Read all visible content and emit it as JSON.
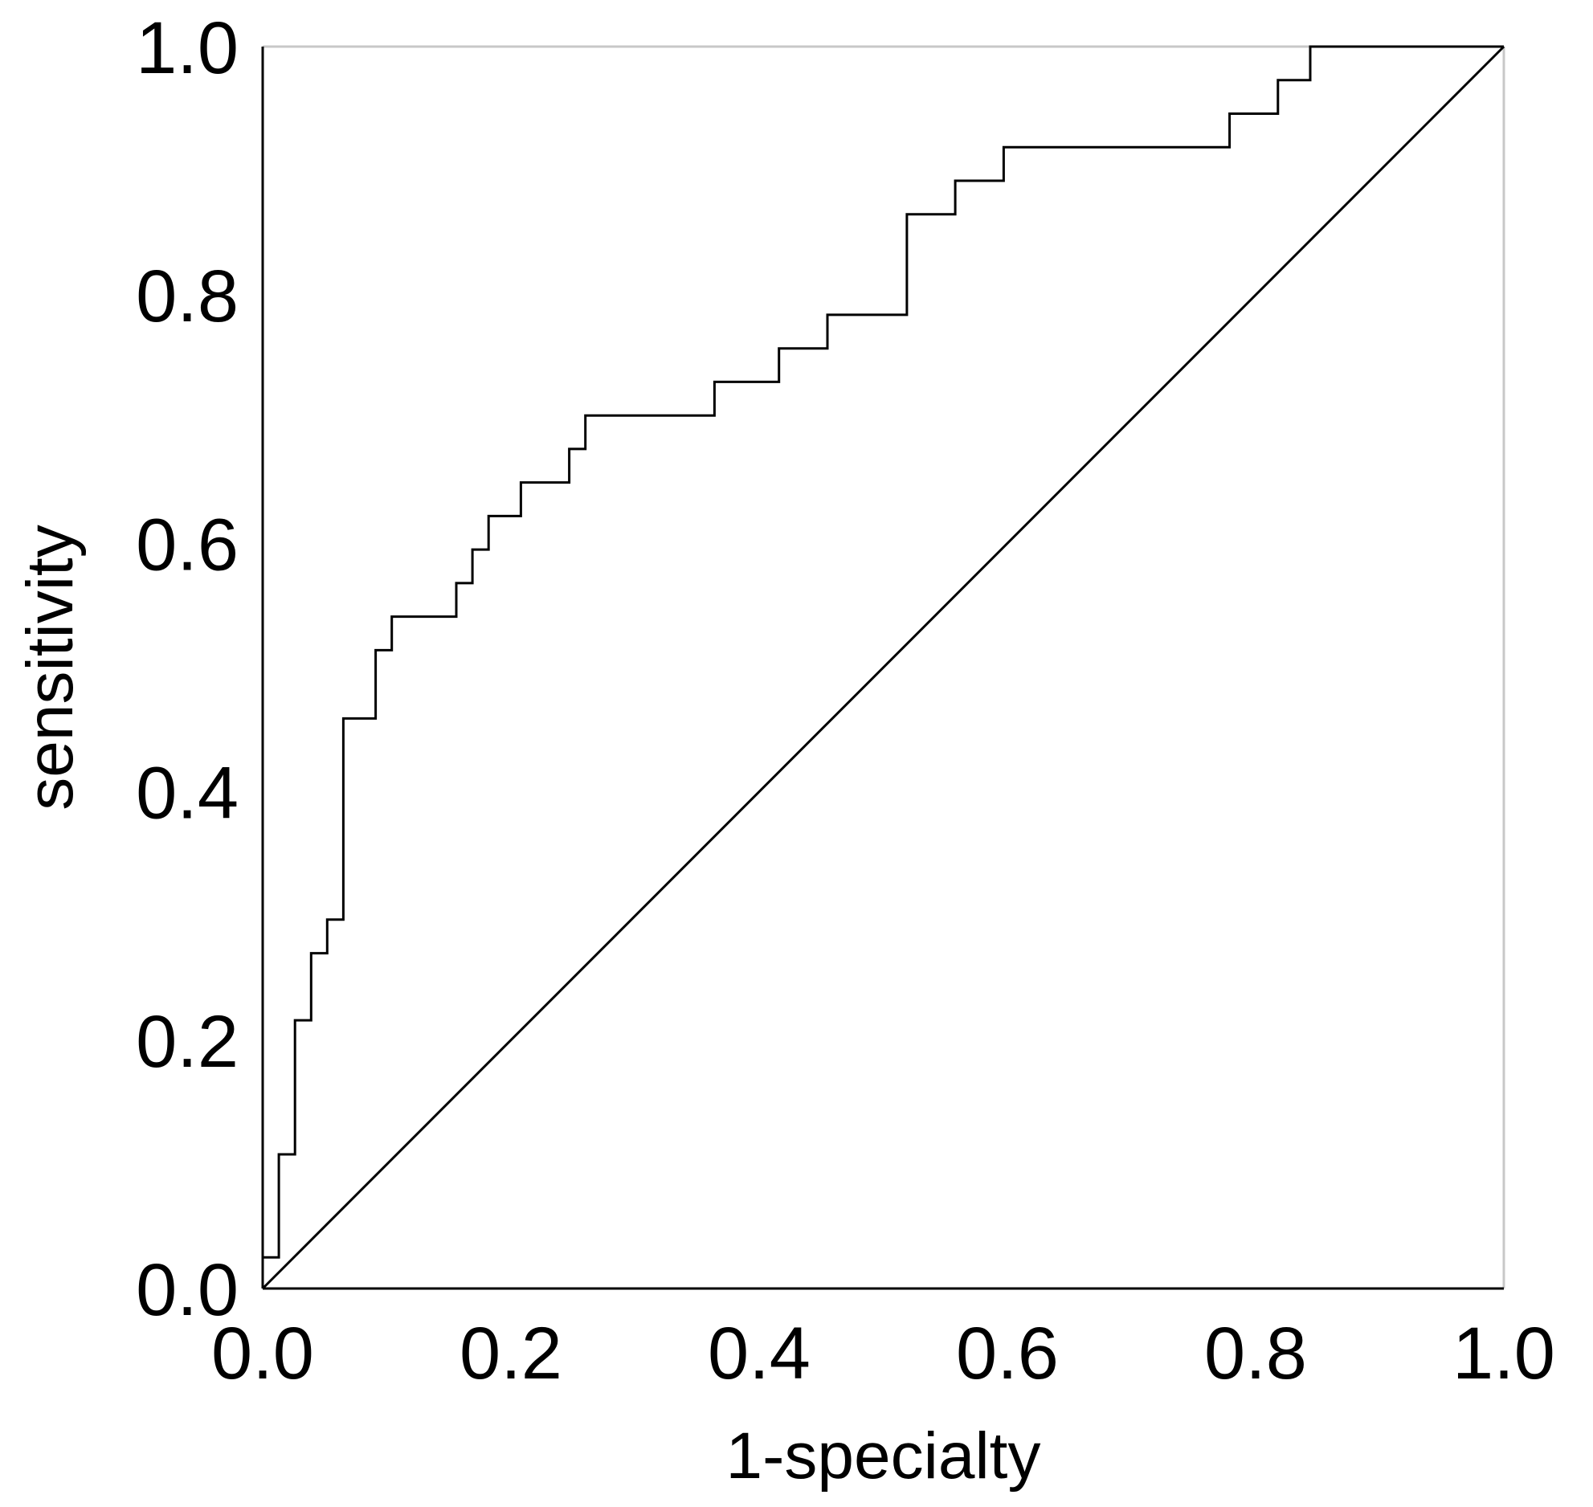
{
  "chart_data": {
    "type": "line",
    "title": "",
    "xlabel": "1-specialty",
    "ylabel": "sensitivity",
    "xlim": [
      0,
      1
    ],
    "ylim": [
      0,
      1
    ],
    "xticks": [
      "0.0",
      "0.2",
      "0.4",
      "0.6",
      "0.8",
      "1.0"
    ],
    "yticks": [
      "0.0",
      "0.2",
      "0.4",
      "0.6",
      "0.8",
      "1.0"
    ],
    "grid": false,
    "legend": "none",
    "colors": {
      "curve": "#000000",
      "reference": "#000000",
      "frame": "#c8c8c8"
    },
    "series": [
      {
        "x": [
          0,
          0,
          0.013,
          0.013,
          0.026,
          0.026,
          0.039,
          0.039,
          0.052,
          0.052,
          0.065,
          0.065,
          0.091,
          0.091,
          0.104,
          0.104,
          0.156,
          0.156,
          0.169,
          0.169,
          0.182,
          0.182,
          0.208,
          0.208,
          0.247,
          0.247,
          0.26,
          0.26,
          0.364,
          0.364,
          0.416,
          0.416,
          0.455,
          0.455,
          0.519,
          0.519,
          0.558,
          0.558,
          0.597,
          0.597,
          0.779,
          0.779,
          0.818,
          0.818,
          0.844,
          0.844,
          1
        ],
        "y": [
          0,
          0.025,
          0.025,
          0.108,
          0.108,
          0.216,
          0.216,
          0.27,
          0.27,
          0.297,
          0.297,
          0.459,
          0.459,
          0.514,
          0.514,
          0.541,
          0.541,
          0.568,
          0.568,
          0.595,
          0.595,
          0.622,
          0.622,
          0.649,
          0.649,
          0.676,
          0.676,
          0.703,
          0.703,
          0.73,
          0.73,
          0.757,
          0.757,
          0.784,
          0.784,
          0.865,
          0.865,
          0.892,
          0.892,
          0.919,
          0.919,
          0.946,
          0.946,
          0.973,
          0.973,
          1,
          1
        ]
      },
      {
        "x": [
          0,
          1
        ],
        "y": [
          0,
          1
        ]
      }
    ]
  }
}
